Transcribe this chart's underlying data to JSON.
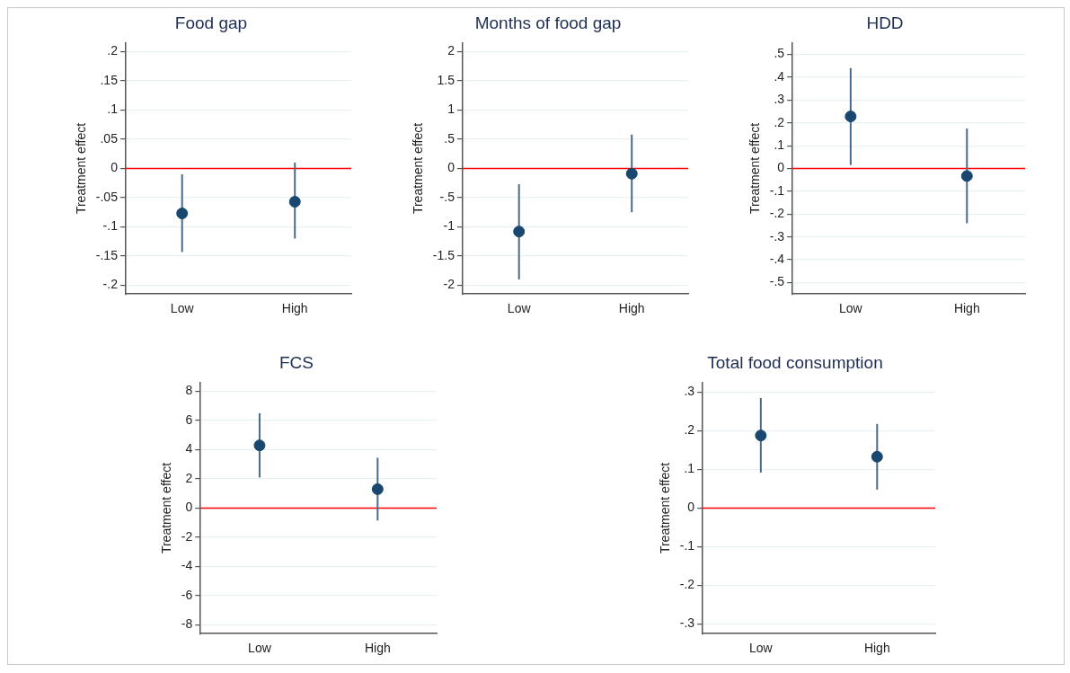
{
  "chart_data": [
    {
      "type": "scatter",
      "title": "Food gap",
      "ylabel": "Treatment effect",
      "categories": [
        "Low",
        "High"
      ],
      "values": [
        -0.077,
        -0.057
      ],
      "errors": [
        [
          -0.143,
          -0.01
        ],
        [
          -0.12,
          0.01
        ]
      ],
      "color": "#1a476f",
      "marker": "circle",
      "grid": "y",
      "ylim": [
        -0.215,
        0.215
      ],
      "yticks": [
        {
          "value": -0.2,
          "label": "-.2"
        },
        {
          "value": -0.15,
          "label": "-.15"
        },
        {
          "value": -0.1,
          "label": "-.1"
        },
        {
          "value": -0.05,
          "label": "-.05"
        },
        0,
        {
          "value": 0.05,
          "label": ".05"
        },
        {
          "value": 0.1,
          "label": ".1"
        },
        {
          "value": 0.15,
          "label": ".15"
        },
        {
          "value": 0.2,
          "label": ".2"
        }
      ],
      "ref_lines": [
        {
          "axis": "y",
          "value": 0,
          "color": "#ff0000"
        }
      ]
    },
    {
      "type": "scatter",
      "title": "Months of food gap",
      "ylabel": "Treatment effect",
      "categories": [
        "Low",
        "High"
      ],
      "values": [
        -1.08,
        -0.09
      ],
      "errors": [
        [
          -1.9,
          -0.27
        ],
        [
          -0.75,
          0.58
        ]
      ],
      "color": "#1a476f",
      "marker": "circle",
      "grid": "y",
      "ylim": [
        -2.15,
        2.15
      ],
      "yticks": [
        -2,
        -1.5,
        -1,
        {
          "value": -0.5,
          "label": "-.5"
        },
        0,
        {
          "value": 0.5,
          "label": ".5"
        },
        1,
        1.5,
        2
      ],
      "ref_lines": [
        {
          "axis": "y",
          "value": 0,
          "color": "#ff0000"
        }
      ]
    },
    {
      "type": "scatter",
      "title": "HDD",
      "ylabel": "Treatment effect",
      "categories": [
        "Low",
        "High"
      ],
      "values": [
        0.228,
        -0.033
      ],
      "errors": [
        [
          0.015,
          0.44
        ],
        [
          -0.24,
          0.175
        ]
      ],
      "color": "#1a476f",
      "marker": "circle",
      "grid": "y",
      "ylim": [
        -0.55,
        0.55
      ],
      "yticks": [
        {
          "value": -0.5,
          "label": "-.5"
        },
        {
          "value": -0.4,
          "label": "-.4"
        },
        {
          "value": -0.3,
          "label": "-.3"
        },
        {
          "value": -0.2,
          "label": "-.2"
        },
        {
          "value": -0.1,
          "label": "-.1"
        },
        0,
        {
          "value": 0.1,
          "label": ".1"
        },
        {
          "value": 0.2,
          "label": ".2"
        },
        {
          "value": 0.3,
          "label": ".3"
        },
        {
          "value": 0.4,
          "label": ".4"
        },
        {
          "value": 0.5,
          "label": ".5"
        }
      ],
      "ref_lines": [
        {
          "axis": "y",
          "value": 0,
          "color": "#ff0000"
        }
      ]
    },
    {
      "type": "scatter",
      "title": "FCS",
      "ylabel": "Treatment effect",
      "categories": [
        "Low",
        "High"
      ],
      "values": [
        4.3,
        1.3
      ],
      "errors": [
        [
          2.1,
          6.5
        ],
        [
          -0.85,
          3.45
        ]
      ],
      "color": "#1a476f",
      "marker": "circle",
      "grid": "y",
      "ylim": [
        -8.6,
        8.6
      ],
      "yticks": [
        -8,
        -6,
        -4,
        -2,
        0,
        2,
        4,
        6,
        8
      ],
      "ref_lines": [
        {
          "axis": "y",
          "value": 0,
          "color": "#ff0000"
        }
      ]
    },
    {
      "type": "scatter",
      "title": "Total food consumption",
      "ylabel": "Treatment effect",
      "categories": [
        "Low",
        "High"
      ],
      "values": [
        0.188,
        0.133
      ],
      "errors": [
        [
          0.092,
          0.285
        ],
        [
          0.048,
          0.218
        ]
      ],
      "color": "#1a476f",
      "marker": "circle",
      "grid": "y",
      "ylim": [
        -0.325,
        0.325
      ],
      "yticks": [
        {
          "value": -0.3,
          "label": "-.3"
        },
        {
          "value": -0.2,
          "label": "-.2"
        },
        {
          "value": -0.1,
          "label": "-.1"
        },
        0,
        {
          "value": 0.1,
          "label": ".1"
        },
        {
          "value": 0.2,
          "label": ".2"
        },
        {
          "value": 0.3,
          "label": ".3"
        }
      ],
      "ref_lines": [
        {
          "axis": "y",
          "value": 0,
          "color": "#ff0000"
        }
      ]
    }
  ]
}
